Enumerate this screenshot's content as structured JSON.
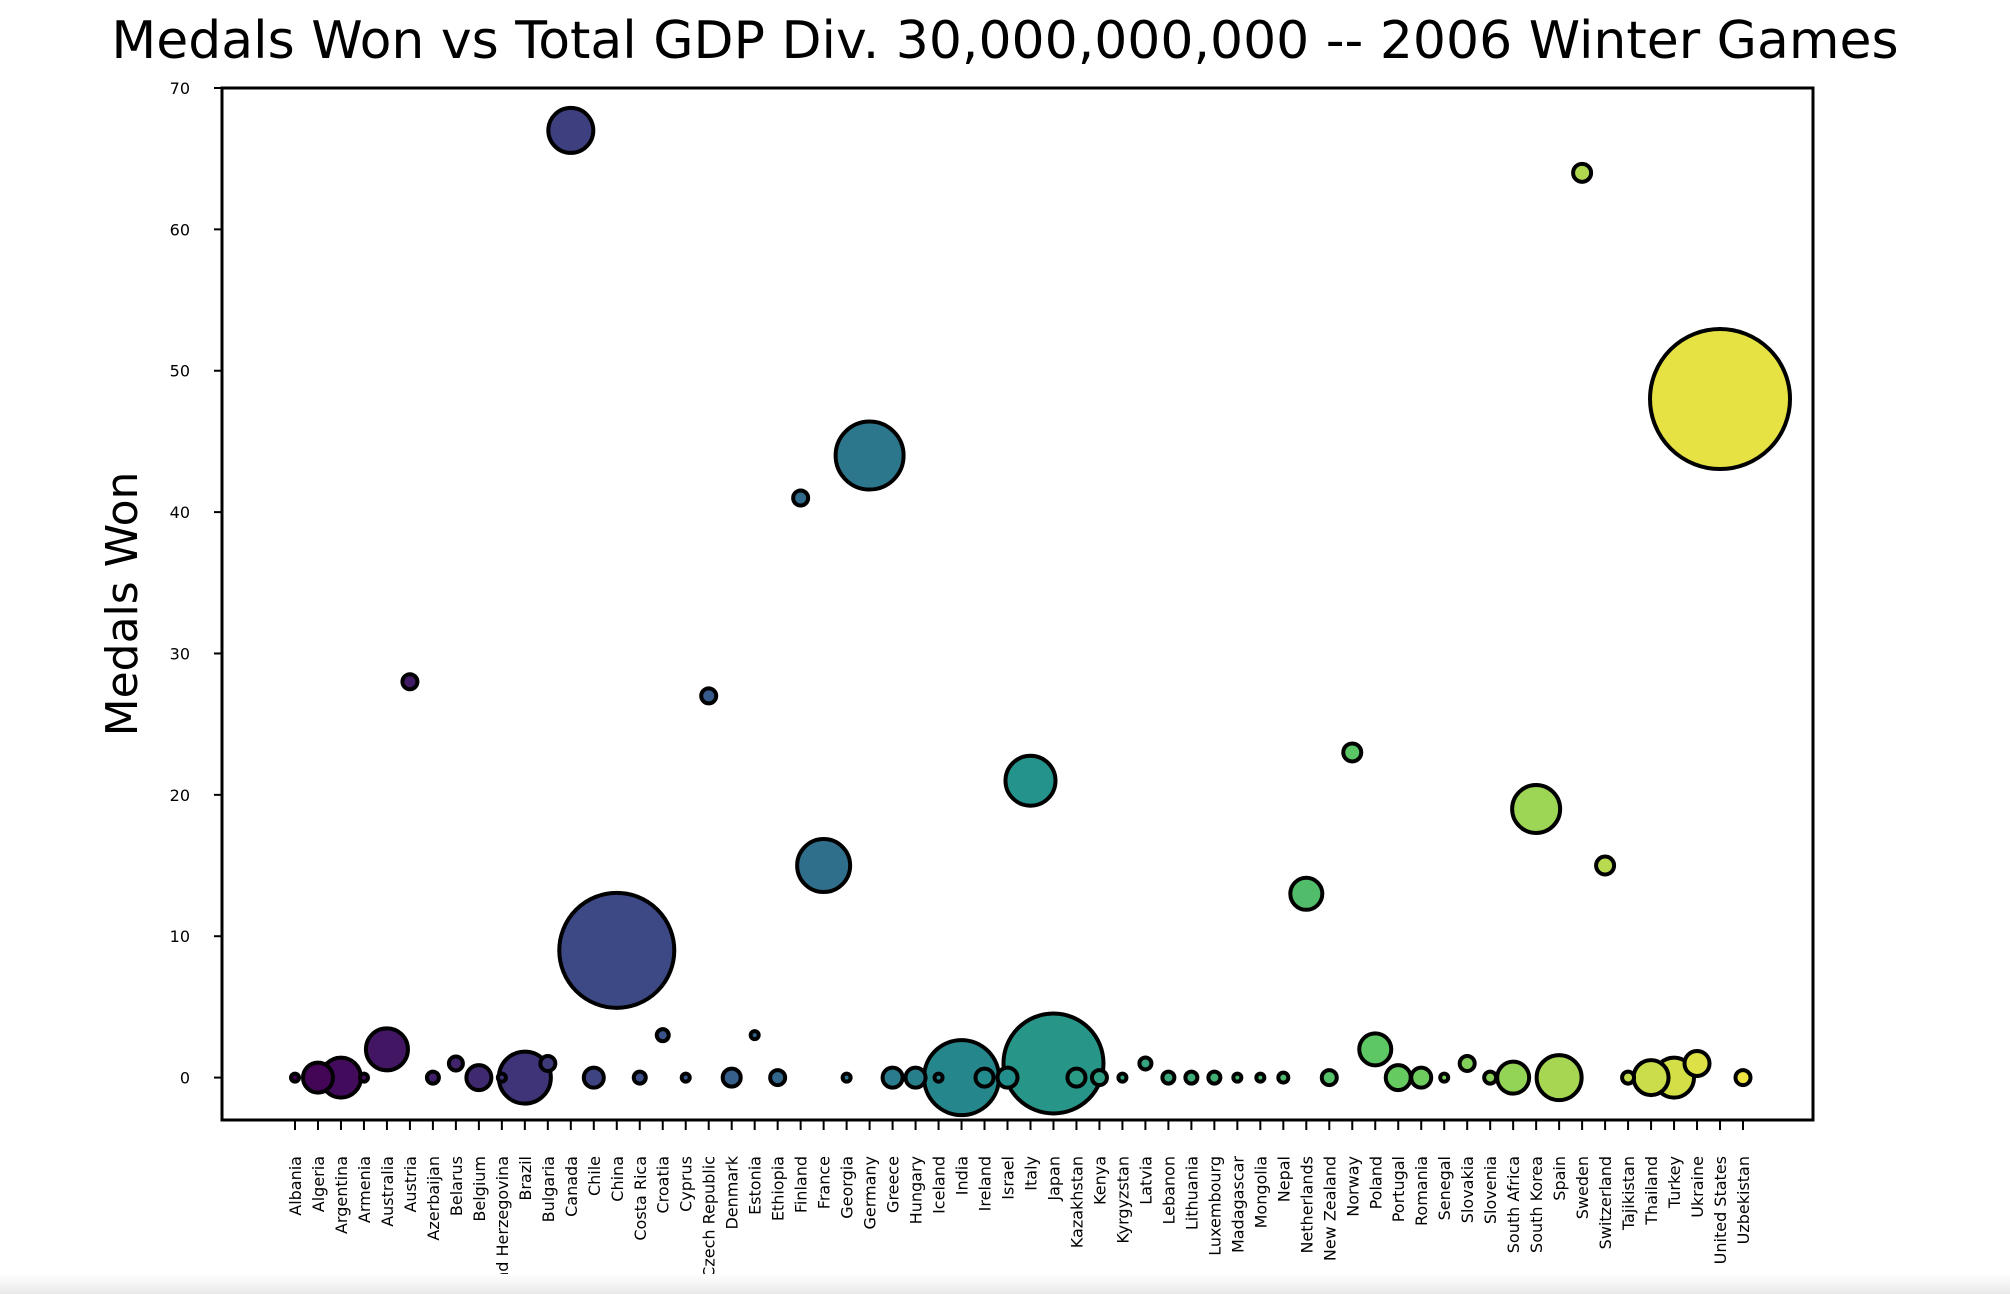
{
  "chart_data": {
    "type": "scatter",
    "title": "Medals Won vs Total GDP Div. 30,000,000,000 -- 2006 Winter Games",
    "xlabel": "",
    "ylabel": "Medals Won",
    "ylim": [
      -3,
      70
    ],
    "yticks": [
      0,
      10,
      20,
      30,
      40,
      50,
      60,
      70
    ],
    "grid": false,
    "colormap": "viridis",
    "categories": [
      "Albania",
      "Algeria",
      "Argentina",
      "Armenia",
      "Australia",
      "Austria",
      "Azerbaijan",
      "Belarus",
      "Belgium",
      "Bosnia and Herzegovina",
      "Brazil",
      "Bulgaria",
      "Canada",
      "Chile",
      "China",
      "Costa Rica",
      "Croatia",
      "Cyprus",
      "Czech Republic",
      "Denmark",
      "Estonia",
      "Ethiopia",
      "Finland",
      "France",
      "Georgia",
      "Germany",
      "Greece",
      "Hungary",
      "Iceland",
      "India",
      "Ireland",
      "Israel",
      "Italy",
      "Japan",
      "Kazakhstan",
      "Kenya",
      "Kyrgyzstan",
      "Latvia",
      "Lebanon",
      "Lithuania",
      "Luxembourg",
      "Madagascar",
      "Mongolia",
      "Nepal",
      "Netherlands",
      "New Zealand",
      "Norway",
      "Poland",
      "Portugal",
      "Romania",
      "Senegal",
      "Slovakia",
      "Slovenia",
      "South Africa",
      "South Korea",
      "Spain",
      "Sweden",
      "Switzerland",
      "Tajikistan",
      "Thailand",
      "Turkey",
      "Ukraine",
      "United States",
      "Uzbekistan"
    ],
    "series": [
      {
        "values": [
          0,
          0,
          0,
          0,
          2,
          28,
          0,
          1,
          0,
          0,
          0,
          1,
          67,
          0,
          9,
          0,
          3,
          0,
          27,
          0,
          3,
          0,
          41,
          15,
          0,
          44,
          0,
          0,
          0,
          0,
          0,
          0,
          21,
          1,
          0,
          0,
          0,
          1,
          0,
          0,
          0,
          0,
          0,
          0,
          13,
          0,
          23,
          2,
          0,
          0,
          0,
          1,
          0,
          0,
          19,
          0,
          64,
          15,
          0,
          0,
          0,
          1,
          48,
          0
        ],
        "sizes": [
          8,
          30,
          40,
          8,
          42,
          15,
          12,
          14,
          25,
          8,
          52,
          15,
          45,
          20,
          115,
          12,
          12,
          8,
          15,
          18,
          8,
          15,
          15,
          53,
          8,
          68,
          20,
          20,
          8,
          75,
          18,
          20,
          50,
          100,
          18,
          15,
          8,
          12,
          12,
          12,
          12,
          8,
          8,
          10,
          32,
          15,
          18,
          32,
          25,
          20,
          8,
          15,
          12,
          32,
          48,
          45,
          18,
          18,
          12,
          35,
          40,
          25,
          140,
          15
        ]
      }
    ]
  }
}
